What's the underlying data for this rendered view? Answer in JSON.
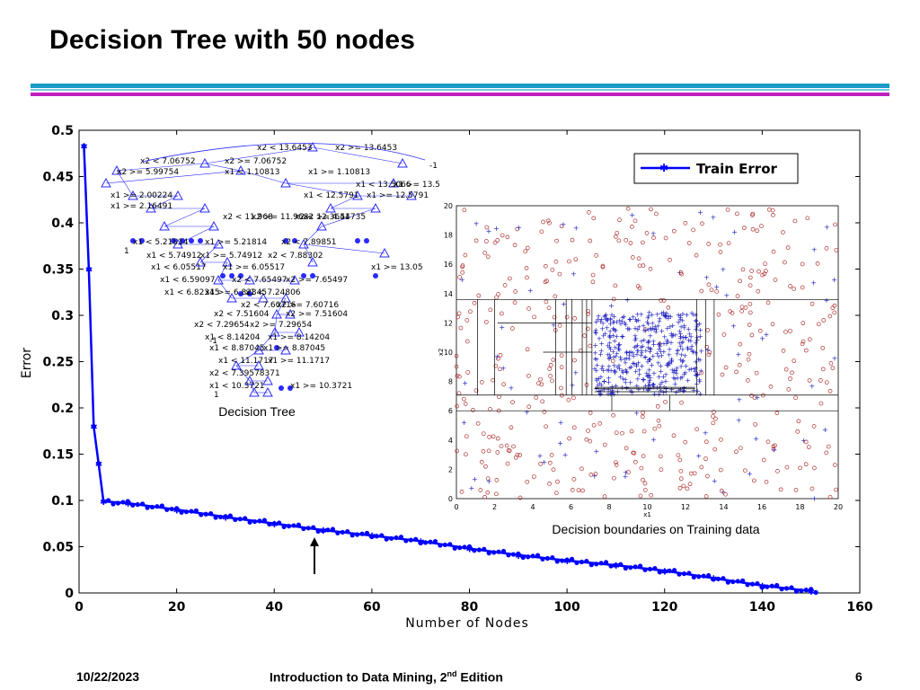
{
  "slide": {
    "title": "Decision Tree with 50 nodes",
    "footer_date": "10/22/2023",
    "footer_course": "Introduction to Data Mining, 2",
    "footer_course_sup": "nd",
    "footer_course_tail": " Edition",
    "page_number": "6"
  },
  "colors": {
    "accent_bar_top": "#1a9bc8",
    "accent_bar_mid": "#7bc9e3",
    "accent_bar_bottom": "#c020c0",
    "series": "#0000ff",
    "scatter_circle": "#b03030",
    "scatter_plus": "#2020c0"
  },
  "chart_data": [
    {
      "type": "line",
      "xlabel": "Number of Nodes",
      "ylabel": "Error",
      "xlim": [
        0,
        160
      ],
      "ylim": [
        0,
        0.5
      ],
      "xticks": [
        0,
        20,
        40,
        60,
        80,
        100,
        120,
        140,
        160
      ],
      "yticks": [
        0,
        0.05,
        0.1,
        0.15,
        0.2,
        0.25,
        0.3,
        0.35,
        0.4,
        0.45,
        0.5
      ],
      "legend": "top-right",
      "series": [
        {
          "name": "Train Error",
          "x": [
            1,
            2,
            3,
            4,
            5,
            10,
            20,
            30,
            40,
            50,
            60,
            70,
            80,
            90,
            100,
            110,
            120,
            130,
            140,
            150
          ],
          "y": [
            0.483,
            0.35,
            0.18,
            0.14,
            0.099,
            0.097,
            0.09,
            0.082,
            0.075,
            0.068,
            0.062,
            0.056,
            0.048,
            0.041,
            0.035,
            0.03,
            0.024,
            0.016,
            0.008,
            0.002
          ]
        }
      ],
      "annotations": [
        {
          "text": "Decision Tree"
        },
        {
          "text": "Decision boundaries on Training data"
        }
      ],
      "arrow_at_x": 48
    },
    {
      "type": "scatter",
      "xlabel": "x1",
      "ylabel": "x2",
      "xlim": [
        0,
        20
      ],
      "ylim": [
        0,
        20
      ],
      "xticks": [
        0,
        2,
        4,
        6,
        8,
        10,
        12,
        14,
        16,
        18,
        20
      ],
      "yticks": [
        0,
        2,
        4,
        6,
        8,
        10,
        12,
        14,
        16,
        18,
        20
      ],
      "series": [
        {
          "marker": "circle"
        },
        {
          "marker": "plus"
        }
      ]
    }
  ],
  "tree": {
    "labels": [
      "x2 < 13.6453",
      "x2 >= 13.6453",
      "x2 < 7.06752",
      "x2 >= 7.06752",
      "x1 < 1.10813",
      "x1 >= 1.10813",
      "x2 >= 5.99754",
      "x1 < 13.5066",
      "x1 >= 13.5",
      "x1 >= 2.00224",
      "x1 < 12.5791",
      "x1 >= 12.5791",
      "x1 >= 2.16491",
      "x2 >= 4.54735",
      "x2 < 12.3641",
      "x2 < 11.968",
      "x2 >= 11.968",
      "x1 < 5.21814",
      "x1 >= 5.21814",
      "x2 < 7.89851",
      "x1 < 5.74912",
      "x1 >= 5.74912",
      "x2 < 7.88302",
      "x1 < 6.05517",
      "x1 >= 6.05517",
      "x1 >= 13.05",
      "x1 < 6.59097",
      "x2 < 7.65497",
      "x2 >= 7.65497",
      "x1 < 6.82345",
      "x1 >= 6.82345",
      "x1 < 7.24806",
      "x2 < 7.60716",
      "x2 >= 7.60716",
      "x2 < 7.51604",
      "x2 >= 7.51604",
      "x2 < 7.29654",
      "x2 >= 7.29654",
      "x1 < 8.14204",
      "x1 >= 8.14204",
      "x1 < 8.87045",
      "x1 >= 8.87045",
      "x1 < 11.1717",
      "x1 >= 11.1717",
      "x2 < 7.39578371",
      "x1 < 10.3721",
      "x1 >= 10.3721",
      "-1",
      "1",
      "-1",
      "1"
    ]
  }
}
